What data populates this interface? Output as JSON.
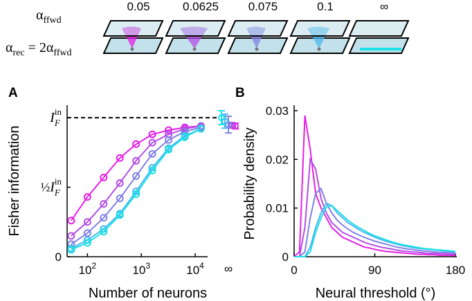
{
  "header": {
    "alpha_ffwd": {
      "symbol": "α",
      "subscript": "ffwd"
    },
    "alpha_rec": {
      "symbol": "α",
      "subscript": "rec",
      "equals": " = 2α",
      "subscript2": "ffwd"
    }
  },
  "chart_data": [
    {
      "type": "line",
      "panel": "A",
      "xlabel": "Number of neurons",
      "ylabel": "Fisher information",
      "log_x": true,
      "x": [
        50,
        100,
        200,
        400,
        800,
        1600,
        3200,
        6400,
        12800
      ],
      "xlim": [
        42,
        17000
      ],
      "xticks": [
        {
          "value": 100,
          "label": {
            "base": "10",
            "sup": "2"
          }
        },
        {
          "value": 1000,
          "label": {
            "base": "10",
            "sup": "3"
          }
        },
        {
          "value": 10000,
          "label": {
            "base": "10",
            "sup": "4"
          }
        }
      ],
      "limit_label": "∞",
      "ylim": [
        0,
        1.09
      ],
      "yticks": [
        0,
        {
          "value": 0.5,
          "label": {
            "prefix": "½",
            "base": "I",
            "sub": "F",
            "sup": "in"
          }
        },
        {
          "value": 1,
          "label": {
            "base": "I",
            "sub": "F",
            "sup": "in"
          }
        }
      ],
      "reference_line": 1,
      "series": [
        {
          "name": "0.05",
          "color": "#e61ee6",
          "values": [
            0.26,
            0.43,
            0.57,
            0.71,
            0.81,
            0.88,
            0.91,
            0.93,
            0.94
          ],
          "limit_value": 0.94,
          "limit_error": 0.02
        },
        {
          "name": "0.0625",
          "color": "#b34ee6",
          "values": [
            0.15,
            0.25,
            0.38,
            0.53,
            0.69,
            0.82,
            0.88,
            0.92,
            0.94
          ],
          "limit_value": 0.945,
          "limit_error": 0.02
        },
        {
          "name": "0.075",
          "color": "#8080e6",
          "values": [
            0.09,
            0.17,
            0.28,
            0.42,
            0.58,
            0.74,
            0.84,
            0.9,
            0.93
          ],
          "limit_value": 0.95,
          "limit_error": 0.06
        },
        {
          "name": "0.1",
          "color": "#4cb8f0",
          "values": [
            0.06,
            0.12,
            0.2,
            0.31,
            0.47,
            0.64,
            0.78,
            0.87,
            0.92
          ],
          "limit_value": 0.975,
          "limit_error": 0.05
        },
        {
          "name": "∞",
          "color": "#19e0e6",
          "values": [
            0.05,
            0.1,
            0.18,
            0.3,
            0.45,
            0.62,
            0.77,
            0.86,
            0.92
          ],
          "limit_value": 1.0,
          "limit_error": 0.05
        }
      ]
    },
    {
      "type": "line",
      "panel": "B",
      "xlabel": "Neural threshold (°)",
      "ylabel": "Probability density",
      "x": [
        0,
        6,
        12,
        18,
        24,
        30,
        36,
        42,
        48,
        54,
        60,
        66,
        72,
        78,
        84,
        90,
        96,
        102,
        108,
        114,
        120,
        126,
        132,
        138,
        144,
        150,
        156,
        162,
        168,
        174,
        180
      ],
      "xlim": [
        0,
        180
      ],
      "xticks": [
        0,
        90,
        180
      ],
      "ylim": [
        0,
        0.03
      ],
      "yticks": [
        0,
        0.01,
        0.02,
        0.03
      ],
      "series": [
        {
          "color": "#e61ee6",
          "values": [
            0,
            0.001,
            0.029,
            0.022,
            0.013,
            0.01,
            0.008,
            0.006,
            0.005,
            0.004,
            0.0035,
            0.003,
            0.0025,
            0.002,
            0.0018,
            0.0015,
            0.0013,
            0.0011,
            0.001,
            0.0009,
            0.0008,
            0.0007,
            0.0006,
            0.0005,
            0.0005,
            0.0004,
            0.0004,
            0.0003,
            0.0003,
            0.0003,
            0.0002
          ]
        },
        {
          "color": "#b34ee6",
          "values": [
            0,
            0,
            0.006,
            0.02,
            0.018,
            0.012,
            0.009,
            0.007,
            0.006,
            0.005,
            0.0045,
            0.004,
            0.0035,
            0.003,
            0.0026,
            0.0023,
            0.002,
            0.0018,
            0.0016,
            0.0014,
            0.0012,
            0.0011,
            0.001,
            0.0009,
            0.0008,
            0.0007,
            0.0007,
            0.0006,
            0.0006,
            0.0005,
            0.0005
          ]
        },
        {
          "color": "#8080e6",
          "values": [
            0,
            0,
            0.001,
            0.008,
            0.013,
            0.014,
            0.011,
            0.009,
            0.0075,
            0.0065,
            0.0057,
            0.005,
            0.0045,
            0.004,
            0.0036,
            0.0032,
            0.0029,
            0.0026,
            0.0023,
            0.002,
            0.0018,
            0.0016,
            0.0015,
            0.0013,
            0.0012,
            0.0011,
            0.001,
            0.0009,
            0.0009,
            0.0008,
            0.0008
          ]
        },
        {
          "color": "#4cb8f0",
          "values": [
            0,
            0,
            0,
            0.002,
            0.006,
            0.009,
            0.011,
            0.0105,
            0.009,
            0.008,
            0.007,
            0.0063,
            0.0056,
            0.005,
            0.0045,
            0.004,
            0.0036,
            0.0032,
            0.0029,
            0.0026,
            0.0023,
            0.0021,
            0.0019,
            0.0017,
            0.0016,
            0.0015,
            0.0014,
            0.0013,
            0.0012,
            0.0011,
            0.001
          ]
        },
        {
          "color": "#19e0e6",
          "values": [
            0,
            0,
            0,
            0.001,
            0.005,
            0.008,
            0.0102,
            0.0105,
            0.0095,
            0.0085,
            0.0075,
            0.0067,
            0.006,
            0.0054,
            0.0048,
            0.0043,
            0.0039,
            0.0035,
            0.0031,
            0.0028,
            0.0025,
            0.0023,
            0.0021,
            0.0019,
            0.0017,
            0.0016,
            0.0015,
            0.0014,
            0.0013,
            0.0012,
            0.0011
          ]
        }
      ]
    }
  ]
}
